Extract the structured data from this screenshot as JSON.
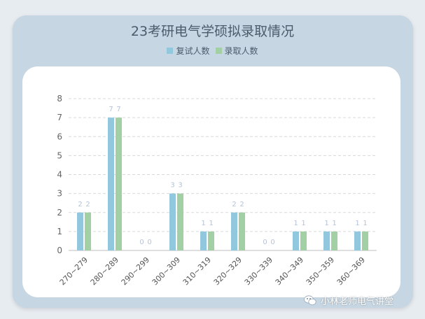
{
  "chart_data": {
    "type": "bar",
    "title": "23考研电气学硕拟录取情况",
    "categories": [
      "270~279",
      "280~289",
      "290~299",
      "300~309",
      "310~319",
      "320~329",
      "330~339",
      "340~349",
      "350~359",
      "360~369"
    ],
    "series": [
      {
        "name": "复试人数",
        "values": [
          2,
          7,
          0,
          3,
          1,
          2,
          0,
          1,
          1,
          1
        ],
        "color": "#92c8dd"
      },
      {
        "name": "录取人数",
        "values": [
          2,
          7,
          0,
          3,
          1,
          2,
          0,
          1,
          1,
          1
        ],
        "color": "#a3cfa5"
      }
    ],
    "ylim": [
      0,
      8
    ],
    "yticks": [
      0,
      1,
      2,
      3,
      4,
      5,
      6,
      7,
      8
    ],
    "xlabel": "",
    "ylabel": "",
    "grid": true,
    "legend": "top-center"
  },
  "watermark": {
    "text": "小林老师电气讲堂",
    "icon": "wechat-icon"
  },
  "colors": {
    "background": "#e7ecf1",
    "frame": "#c6d6e2",
    "panel": "#ffffff",
    "text": "#4b5b6b",
    "label": "#b5c3d8"
  }
}
